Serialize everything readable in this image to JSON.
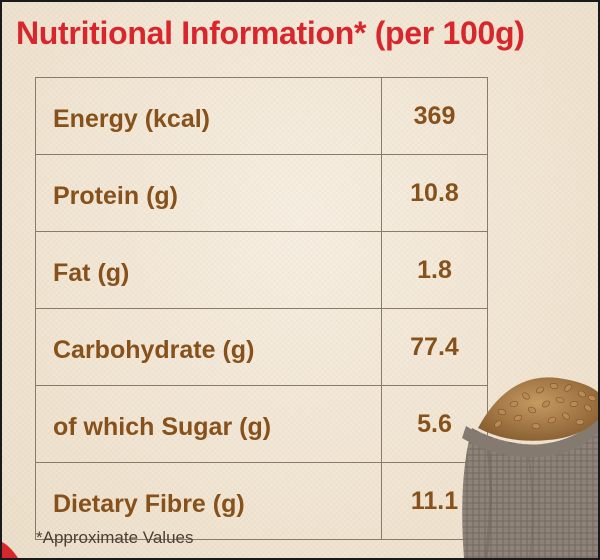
{
  "title": "Nutritional Information* (per 100g)",
  "rows": [
    {
      "label": "Energy (kcal)",
      "value": "369"
    },
    {
      "label": "Protein (g)",
      "value": "10.8"
    },
    {
      "label": "Fat (g)",
      "value": "1.8"
    },
    {
      "label": "Carbohydrate (g)",
      "value": "77.4"
    },
    {
      "label": "of which Sugar (g)",
      "value": "5.6"
    },
    {
      "label": "Dietary Fibre (g)",
      "value": "11.1"
    }
  ],
  "footnote": "*Approximate Values",
  "colors": {
    "title": "#d8262c",
    "text": "#87511b",
    "background": "#f3e9d9",
    "border": "#8a7a68"
  }
}
